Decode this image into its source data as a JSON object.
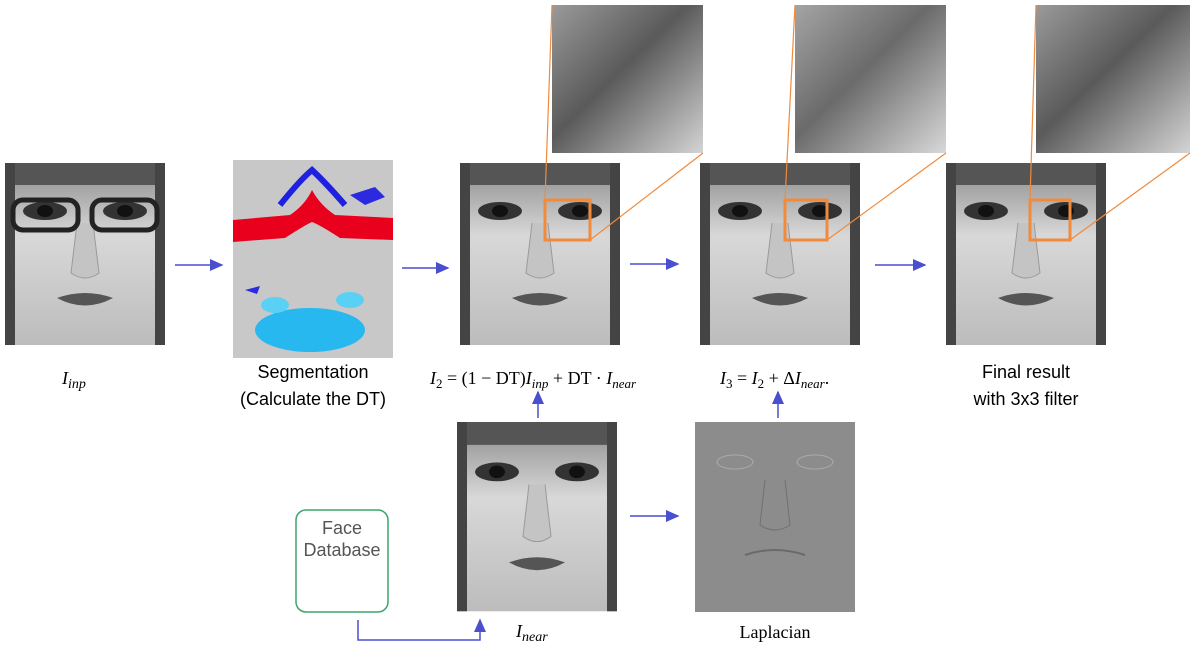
{
  "labels": {
    "input": {
      "base": "I",
      "sub": "inp"
    },
    "segmentation": [
      "Segmentation",
      "(Calculate the DT)"
    ],
    "final": [
      "Final result",
      "with 3x3 filter"
    ],
    "database": [
      "Face",
      "Database"
    ],
    "near": {
      "base": "I",
      "sub": "near"
    },
    "laplacian": "Laplacian"
  },
  "formulas": {
    "i2": [
      "I",
      "2",
      " = (1 − DT)",
      "I",
      "inp",
      " + DT · ",
      "I",
      "near"
    ],
    "i3": [
      "I",
      "3",
      " = ",
      "I",
      "2",
      " + Δ",
      "I",
      "near",
      "."
    ]
  }
}
